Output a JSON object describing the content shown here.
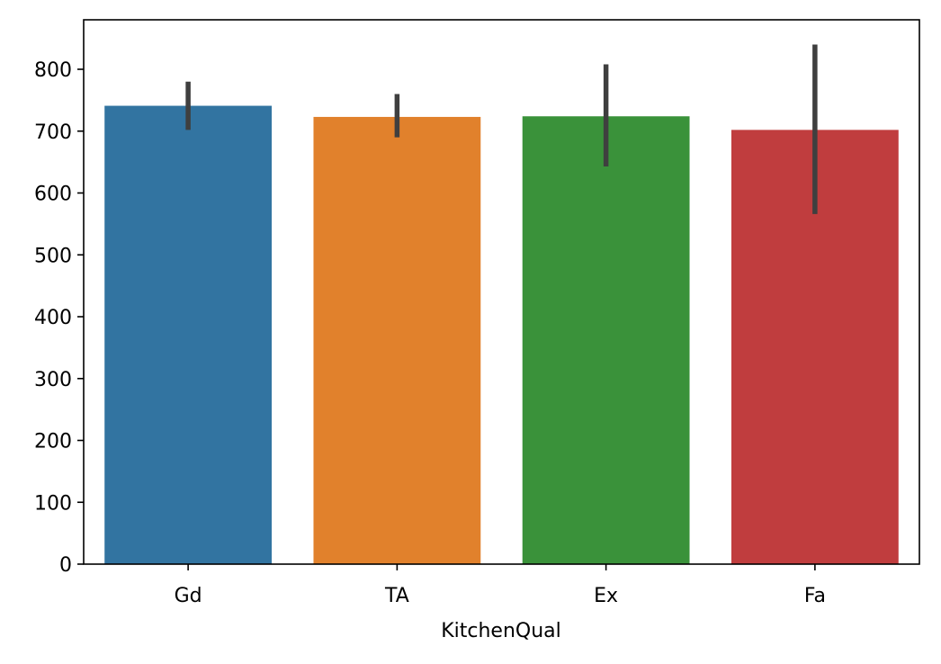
{
  "chart_data": {
    "type": "bar",
    "title": "",
    "xlabel": "KitchenQual",
    "ylabel": "",
    "categories": [
      "Gd",
      "TA",
      "Ex",
      "Fa"
    ],
    "values": [
      741,
      723,
      724,
      702
    ],
    "error_bars": [
      {
        "low": 702,
        "high": 780
      },
      {
        "low": 690,
        "high": 760
      },
      {
        "low": 643,
        "high": 808
      },
      {
        "low": 566,
        "high": 840
      }
    ],
    "colors": [
      "#3274a1",
      "#e1812c",
      "#3a923a",
      "#c03d3e"
    ],
    "error_bar_color": "#3f3f3f",
    "ylim": [
      0,
      880
    ],
    "yticks": [
      0,
      100,
      200,
      300,
      400,
      500,
      600,
      700,
      800
    ],
    "grid": false,
    "legend": "none"
  }
}
